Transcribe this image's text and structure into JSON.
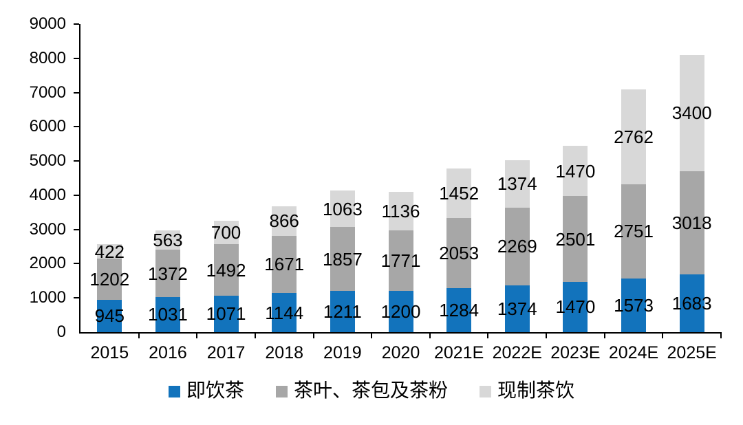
{
  "chart_data": {
    "type": "bar",
    "stacked": true,
    "title": "",
    "xlabel": "",
    "ylabel": "",
    "categories": [
      "2015",
      "2016",
      "2017",
      "2018",
      "2019",
      "2020",
      "2021E",
      "2022E",
      "2023E",
      "2024E",
      "2025E"
    ],
    "series": [
      {
        "name": "即饮茶",
        "color": "#1273BC",
        "values": [
          945,
          1031,
          1071,
          1144,
          1211,
          1200,
          1284,
          1374,
          1470,
          1573,
          1683
        ]
      },
      {
        "name": "茶叶、茶包及茶粉",
        "color": "#A7A7A7",
        "values": [
          1202,
          1372,
          1492,
          1671,
          1857,
          1771,
          2053,
          2269,
          2501,
          2751,
          3018
        ]
      },
      {
        "name": "现制茶饮",
        "color": "#D8D8D8",
        "values": [
          422,
          563,
          700,
          866,
          1063,
          1136,
          1452,
          1374,
          1470,
          2762,
          3400
        ]
      }
    ],
    "ylim": [
      0,
      9000
    ],
    "y_ticks": [
      0,
      1000,
      2000,
      3000,
      4000,
      5000,
      6000,
      7000,
      8000,
      9000
    ],
    "grid": false,
    "legend_position": "bottom",
    "axis_color": "#000000",
    "label_color": "#000000"
  }
}
